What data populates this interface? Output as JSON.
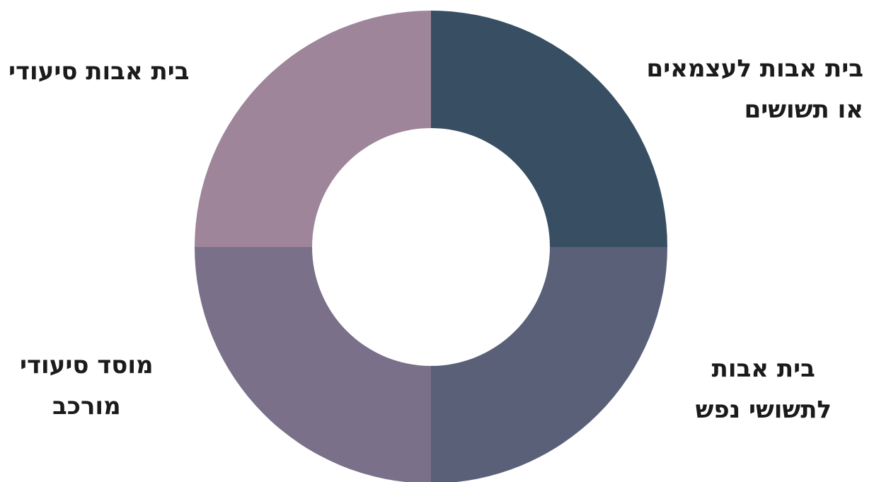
{
  "chart_data": {
    "type": "pie",
    "variant": "donut",
    "categories": [
      "בית אבות לעצמאים או תשושים",
      "בית אבות לתשושי נפש",
      "מוסד סיעודי מורכב",
      "בית אבות סיעודי"
    ],
    "values": [
      25,
      25,
      25,
      25
    ],
    "colors": [
      "#374e63",
      "#596078",
      "#7a7089",
      "#9f859a"
    ],
    "legend_placement": "labels around chart"
  },
  "labels": {
    "top_right": {
      "line1": "בית אבות לעצמאים",
      "line2": "או תשושים"
    },
    "bottom_right": {
      "line1": "בית אבות",
      "line2": "לתשושי נפש"
    },
    "bottom_left": {
      "line1": "מוסד סיעודי",
      "line2": "מורכב"
    },
    "top_left": {
      "line1": "בית אבות סיעודי"
    }
  }
}
